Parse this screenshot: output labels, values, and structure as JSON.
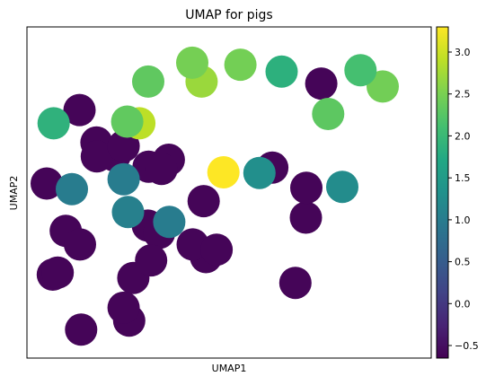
{
  "chart_data": {
    "type": "scatter",
    "title": "UMAP for pigs",
    "xlabel": "UMAP1",
    "ylabel": "UMAP2",
    "xlim": [
      0,
      10
    ],
    "ylim": [
      0,
      10
    ],
    "grid": false,
    "colormap": "viridis",
    "colorbar": {
      "range": [
        -0.65,
        3.3
      ],
      "ticks": [
        -0.5,
        0.0,
        0.5,
        1.0,
        1.5,
        2.0,
        2.5,
        3.0
      ],
      "tick_labels": [
        "−0.5",
        "0.0",
        "0.5",
        "1.0",
        "1.5",
        "2.0",
        "2.5",
        "3.0"
      ]
    },
    "points": [
      {
        "x": 6.07,
        "y": 5.75,
        "c": -0.6
      },
      {
        "x": 6.64,
        "y": 2.27,
        "c": -0.6
      },
      {
        "x": 6.9,
        "y": 4.24,
        "c": -0.6
      },
      {
        "x": 2.17,
        "y": 6.11,
        "c": -0.6
      },
      {
        "x": 3.01,
        "y": 5.78,
        "c": -0.6
      },
      {
        "x": 2.99,
        "y": 4.0,
        "c": -0.6
      },
      {
        "x": 6.91,
        "y": 5.14,
        "c": -0.6
      },
      {
        "x": 7.28,
        "y": 8.29,
        "c": -0.6
      },
      {
        "x": 3.27,
        "y": 3.78,
        "c": -0.6
      },
      {
        "x": 4.43,
        "y": 3.05,
        "c": -0.6
      },
      {
        "x": 0.64,
        "y": 2.52,
        "c": -0.6
      },
      {
        "x": 4.1,
        "y": 3.43,
        "c": -0.6
      },
      {
        "x": 4.69,
        "y": 3.27,
        "c": -0.6
      },
      {
        "x": 3.51,
        "y": 5.99,
        "c": -0.6
      },
      {
        "x": 2.63,
        "y": 2.42,
        "c": -0.6
      },
      {
        "x": 0.96,
        "y": 3.84,
        "c": -0.6
      },
      {
        "x": 2.53,
        "y": 1.13,
        "c": -0.6
      },
      {
        "x": 1.34,
        "y": 0.86,
        "c": -0.6
      },
      {
        "x": 1.72,
        "y": 6.51,
        "c": -0.6
      },
      {
        "x": 1.73,
        "y": 6.09,
        "c": -0.6
      },
      {
        "x": 0.49,
        "y": 5.27,
        "c": -0.6
      },
      {
        "x": 4.37,
        "y": 4.74,
        "c": -0.6
      },
      {
        "x": 3.07,
        "y": 2.95,
        "c": -0.6
      },
      {
        "x": 1.31,
        "y": 3.43,
        "c": -0.6
      },
      {
        "x": 3.33,
        "y": 5.71,
        "c": -0.6
      },
      {
        "x": 2.39,
        "y": 1.52,
        "c": -0.6
      },
      {
        "x": 2.39,
        "y": 6.4,
        "c": -0.6
      },
      {
        "x": 1.3,
        "y": 7.49,
        "c": -0.6
      },
      {
        "x": 0.76,
        "y": 2.58,
        "c": -0.6
      },
      {
        "x": 1.11,
        "y": 5.1,
        "c": 1.0
      },
      {
        "x": 3.52,
        "y": 4.11,
        "c": 1.0
      },
      {
        "x": 2.39,
        "y": 5.4,
        "c": 1.0
      },
      {
        "x": 2.5,
        "y": 4.41,
        "c": 1.05
      },
      {
        "x": 5.75,
        "y": 5.59,
        "c": 1.3
      },
      {
        "x": 7.8,
        "y": 5.17,
        "c": 1.25
      },
      {
        "x": 4.32,
        "y": 8.35,
        "c": 2.7
      },
      {
        "x": 4.86,
        "y": 5.61,
        "c": 3.3
      },
      {
        "x": 0.66,
        "y": 7.09,
        "c": 1.88
      },
      {
        "x": 6.3,
        "y": 8.65,
        "c": 1.85
      },
      {
        "x": 8.8,
        "y": 8.2,
        "c": 2.45
      },
      {
        "x": 8.25,
        "y": 8.69,
        "c": 2.12
      },
      {
        "x": 7.45,
        "y": 7.37,
        "c": 2.3
      },
      {
        "x": 4.09,
        "y": 8.92,
        "c": 2.47
      },
      {
        "x": 2.78,
        "y": 7.09,
        "c": 2.9
      },
      {
        "x": 2.48,
        "y": 7.14,
        "c": 2.33
      },
      {
        "x": 5.28,
        "y": 8.86,
        "c": 2.46
      },
      {
        "x": 3.0,
        "y": 8.35,
        "c": 2.32
      }
    ]
  }
}
